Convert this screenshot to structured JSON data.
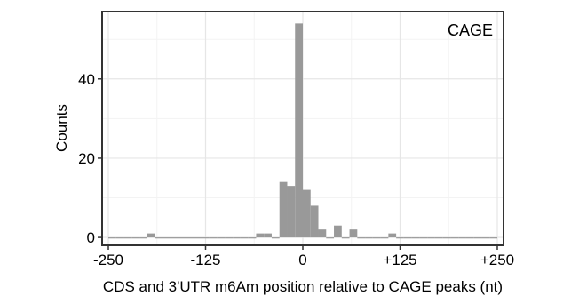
{
  "chart_data": {
    "type": "bar",
    "title": "",
    "xlabel": "CDS and 3'UTR m6Am position relative to CAGE peaks (nt)",
    "ylabel": "Counts",
    "panel_label": "CAGE",
    "xlim": [
      -258,
      258
    ],
    "ylim": [
      -2,
      57
    ],
    "x_ticks": [
      -250,
      -125,
      0,
      125,
      250
    ],
    "x_tick_labels": [
      "-250",
      "-125",
      "0",
      "+125",
      "+250"
    ],
    "y_ticks": [
      0,
      20,
      40
    ],
    "y_tick_labels": [
      "0",
      "20",
      "40"
    ],
    "grid": true,
    "bin_width": 10,
    "bins": [
      {
        "x0": -250,
        "x1": -240,
        "count": 0
      },
      {
        "x0": -240,
        "x1": -230,
        "count": 0
      },
      {
        "x0": -230,
        "x1": -220,
        "count": 0
      },
      {
        "x0": -220,
        "x1": -210,
        "count": 0
      },
      {
        "x0": -210,
        "x1": -200,
        "count": 0
      },
      {
        "x0": -200,
        "x1": -190,
        "count": 1
      },
      {
        "x0": -190,
        "x1": -180,
        "count": 0
      },
      {
        "x0": -180,
        "x1": -170,
        "count": 0
      },
      {
        "x0": -170,
        "x1": -160,
        "count": 0
      },
      {
        "x0": -160,
        "x1": -150,
        "count": 0
      },
      {
        "x0": -150,
        "x1": -140,
        "count": 0
      },
      {
        "x0": -140,
        "x1": -130,
        "count": 0
      },
      {
        "x0": -130,
        "x1": -120,
        "count": 0
      },
      {
        "x0": -120,
        "x1": -110,
        "count": 0
      },
      {
        "x0": -110,
        "x1": -100,
        "count": 0
      },
      {
        "x0": -100,
        "x1": -90,
        "count": 0
      },
      {
        "x0": -90,
        "x1": -80,
        "count": 0
      },
      {
        "x0": -80,
        "x1": -70,
        "count": 0
      },
      {
        "x0": -70,
        "x1": -60,
        "count": 0
      },
      {
        "x0": -60,
        "x1": -50,
        "count": 1
      },
      {
        "x0": -50,
        "x1": -40,
        "count": 1
      },
      {
        "x0": -40,
        "x1": -30,
        "count": 0
      },
      {
        "x0": -30,
        "x1": -20,
        "count": 14
      },
      {
        "x0": -20,
        "x1": -10,
        "count": 13
      },
      {
        "x0": -10,
        "x1": 0,
        "count": 54
      },
      {
        "x0": 0,
        "x1": 10,
        "count": 12
      },
      {
        "x0": 10,
        "x1": 20,
        "count": 8
      },
      {
        "x0": 20,
        "x1": 30,
        "count": 2
      },
      {
        "x0": 30,
        "x1": 40,
        "count": 0
      },
      {
        "x0": 40,
        "x1": 50,
        "count": 3
      },
      {
        "x0": 50,
        "x1": 60,
        "count": 0
      },
      {
        "x0": 60,
        "x1": 70,
        "count": 2
      },
      {
        "x0": 70,
        "x1": 80,
        "count": 0
      },
      {
        "x0": 80,
        "x1": 90,
        "count": 0
      },
      {
        "x0": 90,
        "x1": 100,
        "count": 0
      },
      {
        "x0": 100,
        "x1": 110,
        "count": 0
      },
      {
        "x0": 110,
        "x1": 120,
        "count": 1
      },
      {
        "x0": 120,
        "x1": 130,
        "count": 0
      },
      {
        "x0": 130,
        "x1": 140,
        "count": 0
      },
      {
        "x0": 140,
        "x1": 150,
        "count": 0
      },
      {
        "x0": 150,
        "x1": 160,
        "count": 0
      },
      {
        "x0": 160,
        "x1": 170,
        "count": 0
      },
      {
        "x0": 170,
        "x1": 180,
        "count": 0
      },
      {
        "x0": 180,
        "x1": 190,
        "count": 0
      },
      {
        "x0": 190,
        "x1": 200,
        "count": 0
      },
      {
        "x0": 200,
        "x1": 210,
        "count": 0
      },
      {
        "x0": 210,
        "x1": 220,
        "count": 0
      },
      {
        "x0": 220,
        "x1": 230,
        "count": 0
      },
      {
        "x0": 230,
        "x1": 240,
        "count": 0
      },
      {
        "x0": 240,
        "x1": 250,
        "count": 0
      }
    ],
    "colors": {
      "bar_fill": "#999999",
      "panel_background": "#ffffff",
      "grid_major": "#e6e6e6",
      "grid_minor": "#f3f3f3",
      "panel_border": "#333333"
    }
  }
}
